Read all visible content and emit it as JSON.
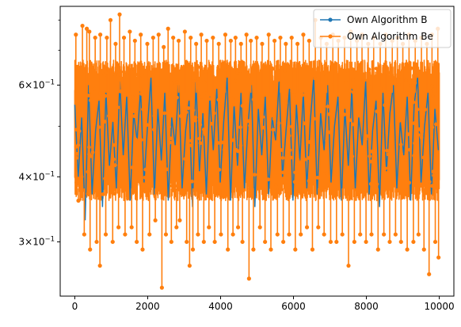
{
  "chart_data": {
    "type": "line",
    "title": "",
    "xlabel": "",
    "ylabel": "",
    "xlim": [
      -400,
      10400
    ],
    "ylim": [
      0.236,
      0.85
    ],
    "yscale": "log",
    "grid": false,
    "legend_position": "top-right",
    "x_ticks": [
      0,
      2000,
      4000,
      6000,
      8000,
      10000
    ],
    "x_tick_labels": [
      "0",
      "2000",
      "4000",
      "6000",
      "8000",
      "10000"
    ],
    "y_major_ticks": [
      0.3,
      0.4,
      0.6
    ],
    "y_tick_labels": {
      "0.3": {
        "mantissa": "3",
        "base": "10",
        "exp": "−1"
      },
      "0.4": {
        "mantissa": "4",
        "base": "10",
        "exp": "−1"
      },
      "0.6": {
        "mantissa": "6",
        "base": "10",
        "exp": "−1"
      }
    },
    "y_minor_ticks": [
      0.5,
      0.7,
      0.8
    ],
    "series": [
      {
        "name": "Own Algorithm B",
        "color": "#1f77b4",
        "marker": "circle",
        "n_points": 10000,
        "typical_range": [
          0.36,
          0.62
        ],
        "max": 0.82,
        "min": 0.245
      },
      {
        "name": "Own Algorithm Be",
        "color": "#ff7f0e",
        "marker": "circle",
        "n_points": 10000,
        "typical_range": [
          0.36,
          0.62
        ],
        "max": 0.82,
        "min": 0.245
      }
    ],
    "series_b_points": [
      [
        0,
        0.55
      ],
      [
        95,
        0.4
      ],
      [
        190,
        0.52
      ],
      [
        285,
        0.33
      ],
      [
        380,
        0.6
      ],
      [
        475,
        0.37
      ],
      [
        570,
        0.49
      ],
      [
        665,
        0.56
      ],
      [
        760,
        0.35
      ],
      [
        855,
        0.58
      ],
      [
        950,
        0.42
      ],
      [
        1045,
        0.51
      ],
      [
        1140,
        0.38
      ],
      [
        1235,
        0.61
      ],
      [
        1330,
        0.44
      ],
      [
        1425,
        0.57
      ],
      [
        1520,
        0.36
      ],
      [
        1615,
        0.53
      ],
      [
        1710,
        0.47
      ],
      [
        1805,
        0.59
      ],
      [
        1900,
        0.39
      ],
      [
        1995,
        0.5
      ],
      [
        2090,
        0.62
      ],
      [
        2185,
        0.37
      ],
      [
        2280,
        0.54
      ],
      [
        2375,
        0.43
      ],
      [
        2470,
        0.58
      ],
      [
        2565,
        0.36
      ],
      [
        2660,
        0.52
      ],
      [
        2755,
        0.46
      ],
      [
        2850,
        0.6
      ],
      [
        2945,
        0.38
      ],
      [
        3040,
        0.49
      ],
      [
        3135,
        0.56
      ],
      [
        3230,
        0.35
      ],
      [
        3325,
        0.61
      ],
      [
        3420,
        0.41
      ],
      [
        3515,
        0.53
      ],
      [
        3610,
        0.37
      ],
      [
        3705,
        0.57
      ],
      [
        3800,
        0.45
      ],
      [
        3895,
        0.59
      ],
      [
        3990,
        0.39
      ],
      [
        4085,
        0.51
      ],
      [
        4180,
        0.62
      ],
      [
        4275,
        0.36
      ],
      [
        4370,
        0.55
      ],
      [
        4465,
        0.42
      ],
      [
        4560,
        0.58
      ],
      [
        4655,
        0.38
      ],
      [
        4750,
        0.5
      ],
      [
        4845,
        0.6
      ],
      [
        4940,
        0.35
      ],
      [
        5035,
        0.54
      ],
      [
        5130,
        0.44
      ],
      [
        5225,
        0.57
      ],
      [
        5320,
        0.37
      ],
      [
        5415,
        0.52
      ],
      [
        5510,
        0.47
      ],
      [
        5605,
        0.61
      ],
      [
        5700,
        0.4
      ],
      [
        5795,
        0.49
      ],
      [
        5890,
        0.59
      ],
      [
        5985,
        0.36
      ],
      [
        6080,
        0.55
      ],
      [
        6175,
        0.43
      ],
      [
        6270,
        0.58
      ],
      [
        6365,
        0.38
      ],
      [
        6460,
        0.51
      ],
      [
        6555,
        0.62
      ],
      [
        6650,
        0.37
      ],
      [
        6745,
        0.53
      ],
      [
        6840,
        0.45
      ],
      [
        6935,
        0.6
      ],
      [
        7030,
        0.39
      ],
      [
        7125,
        0.5
      ],
      [
        7220,
        0.57
      ],
      [
        7315,
        0.36
      ],
      [
        7410,
        0.54
      ],
      [
        7505,
        0.42
      ],
      [
        7600,
        0.59
      ],
      [
        7695,
        0.38
      ],
      [
        7790,
        0.52
      ],
      [
        7885,
        0.46
      ],
      [
        7980,
        0.61
      ],
      [
        8075,
        0.37
      ],
      [
        8170,
        0.49
      ],
      [
        8265,
        0.56
      ],
      [
        8360,
        0.35
      ],
      [
        8455,
        0.58
      ],
      [
        8550,
        0.41
      ],
      [
        8645,
        0.53
      ],
      [
        8740,
        0.6
      ],
      [
        8835,
        0.38
      ],
      [
        8930,
        0.51
      ],
      [
        9025,
        0.44
      ],
      [
        9120,
        0.57
      ],
      [
        9215,
        0.36
      ],
      [
        9310,
        0.55
      ],
      [
        9405,
        0.62
      ],
      [
        9500,
        0.39
      ],
      [
        9595,
        0.5
      ],
      [
        9690,
        0.58
      ],
      [
        9785,
        0.37
      ],
      [
        9880,
        0.54
      ],
      [
        9975,
        0.45
      ]
    ],
    "series_be_spikes": [
      [
        30,
        0.75
      ],
      [
        210,
        0.78
      ],
      [
        330,
        0.77
      ],
      [
        400,
        0.76
      ],
      [
        560,
        0.74
      ],
      [
        700,
        0.75
      ],
      [
        880,
        0.74
      ],
      [
        980,
        0.8
      ],
      [
        1120,
        0.72
      ],
      [
        1230,
        0.82
      ],
      [
        1350,
        0.74
      ],
      [
        1510,
        0.76
      ],
      [
        1650,
        0.73
      ],
      [
        1810,
        0.75
      ],
      [
        1990,
        0.72
      ],
      [
        2150,
        0.74
      ],
      [
        2300,
        0.75
      ],
      [
        2440,
        0.71
      ],
      [
        2560,
        0.77
      ],
      [
        2700,
        0.74
      ],
      [
        2850,
        0.73
      ],
      [
        3020,
        0.76
      ],
      [
        3180,
        0.74
      ],
      [
        3330,
        0.72
      ],
      [
        3470,
        0.75
      ],
      [
        3620,
        0.73
      ],
      [
        3790,
        0.74
      ],
      [
        3950,
        0.72
      ],
      [
        4130,
        0.75
      ],
      [
        4280,
        0.73
      ],
      [
        4410,
        0.74
      ],
      [
        4560,
        0.72
      ],
      [
        4710,
        0.75
      ],
      [
        4830,
        0.73
      ],
      [
        4990,
        0.74
      ],
      [
        5140,
        0.72
      ],
      [
        5320,
        0.75
      ],
      [
        5480,
        0.73
      ],
      [
        5640,
        0.74
      ],
      [
        5790,
        0.72
      ],
      [
        5950,
        0.74
      ],
      [
        6110,
        0.72
      ],
      [
        6270,
        0.75
      ],
      [
        6430,
        0.73
      ],
      [
        6600,
        0.8
      ],
      [
        6750,
        0.74
      ],
      [
        6910,
        0.72
      ],
      [
        7080,
        0.75
      ],
      [
        7230,
        0.73
      ],
      [
        7400,
        0.74
      ],
      [
        7570,
        0.76
      ],
      [
        7740,
        0.73
      ],
      [
        7880,
        0.75
      ],
      [
        8050,
        0.72
      ],
      [
        8200,
        0.74
      ],
      [
        8380,
        0.72
      ],
      [
        8530,
        0.75
      ],
      [
        8710,
        0.73
      ],
      [
        8850,
        0.74
      ],
      [
        9000,
        0.72
      ],
      [
        9170,
        0.75
      ],
      [
        9340,
        0.73
      ],
      [
        9510,
        0.74
      ],
      [
        9660,
        0.72
      ],
      [
        9800,
        0.75
      ],
      [
        9960,
        0.77
      ],
      [
        100,
        0.36
      ],
      [
        260,
        0.31
      ],
      [
        420,
        0.29
      ],
      [
        600,
        0.3
      ],
      [
        690,
        0.27
      ],
      [
        850,
        0.31
      ],
      [
        1040,
        0.3
      ],
      [
        1200,
        0.32
      ],
      [
        1380,
        0.31
      ],
      [
        1560,
        0.32
      ],
      [
        1700,
        0.3
      ],
      [
        1860,
        0.29
      ],
      [
        2050,
        0.31
      ],
      [
        2210,
        0.33
      ],
      [
        2390,
        0.245
      ],
      [
        2500,
        0.31
      ],
      [
        2650,
        0.3
      ],
      [
        2790,
        0.32
      ],
      [
        2880,
        0.33
      ],
      [
        3070,
        0.3
      ],
      [
        3150,
        0.27
      ],
      [
        3240,
        0.29
      ],
      [
        3380,
        0.31
      ],
      [
        3540,
        0.3
      ],
      [
        3680,
        0.32
      ],
      [
        3840,
        0.3
      ],
      [
        4010,
        0.31
      ],
      [
        4200,
        0.29
      ],
      [
        4340,
        0.31
      ],
      [
        4480,
        0.32
      ],
      [
        4600,
        0.3
      ],
      [
        4780,
        0.255
      ],
      [
        4900,
        0.29
      ],
      [
        5080,
        0.32
      ],
      [
        5220,
        0.3
      ],
      [
        5380,
        0.29
      ],
      [
        5560,
        0.31
      ],
      [
        5720,
        0.3
      ],
      [
        5880,
        0.31
      ],
      [
        6050,
        0.29
      ],
      [
        6200,
        0.31
      ],
      [
        6370,
        0.32
      ],
      [
        6520,
        0.29
      ],
      [
        6680,
        0.32
      ],
      [
        6840,
        0.31
      ],
      [
        7020,
        0.3
      ],
      [
        7180,
        0.3
      ],
      [
        7340,
        0.31
      ],
      [
        7510,
        0.27
      ],
      [
        7670,
        0.3
      ],
      [
        7830,
        0.31
      ],
      [
        7990,
        0.3
      ],
      [
        8140,
        0.31
      ],
      [
        8320,
        0.29
      ],
      [
        8480,
        0.31
      ],
      [
        8640,
        0.3
      ],
      [
        8800,
        0.31
      ],
      [
        8950,
        0.3
      ],
      [
        9120,
        0.29
      ],
      [
        9290,
        0.3
      ],
      [
        9430,
        0.31
      ],
      [
        9580,
        0.29
      ],
      [
        9720,
        0.26
      ],
      [
        9890,
        0.3
      ],
      [
        9980,
        0.28
      ]
    ]
  }
}
